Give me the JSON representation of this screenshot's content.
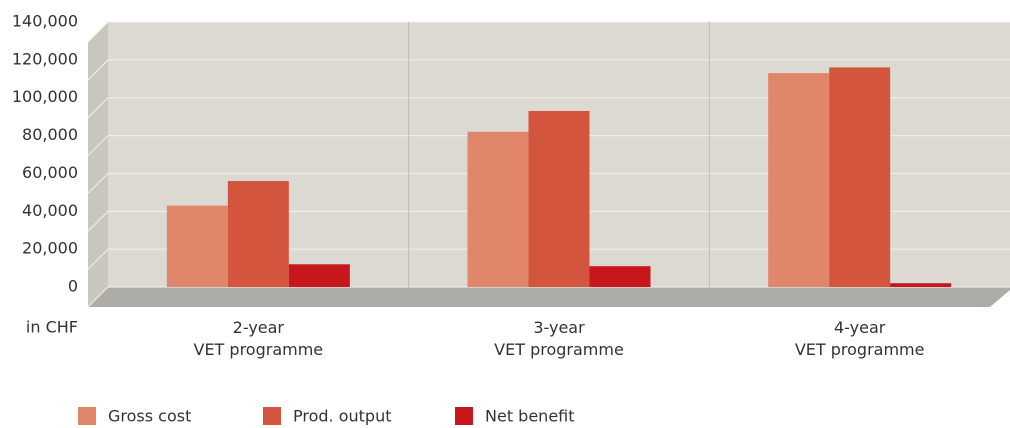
{
  "chart_data": {
    "type": "bar",
    "y_label": "in CHF",
    "categories": [
      "2-year\nVET programme",
      "3-year\nVET programme",
      "4-year\nVET programme"
    ],
    "series": [
      {
        "name": "Gross cost",
        "color": "#e0876b",
        "values": [
          43000,
          82000,
          113000
        ]
      },
      {
        "name": "Prod. output",
        "color": "#d3553d",
        "values": [
          56000,
          93000,
          116000
        ]
      },
      {
        "name": "Net benefit",
        "color": "#c8161d",
        "values": [
          12000,
          11000,
          2000
        ]
      }
    ],
    "ylim": [
      0,
      140000
    ],
    "yticks": [
      0,
      {
        "value": 20000,
        "label": "20,000"
      },
      {
        "value": 40000,
        "label": "40,000"
      },
      {
        "value": 60000,
        "label": "60,000"
      },
      {
        "value": 80000,
        "label": "80,000"
      },
      {
        "value": 100000,
        "label": "100,000"
      },
      {
        "value": 120000,
        "label": "120,000"
      },
      {
        "value": 140000,
        "label": "140,000"
      }
    ],
    "grid": true
  }
}
